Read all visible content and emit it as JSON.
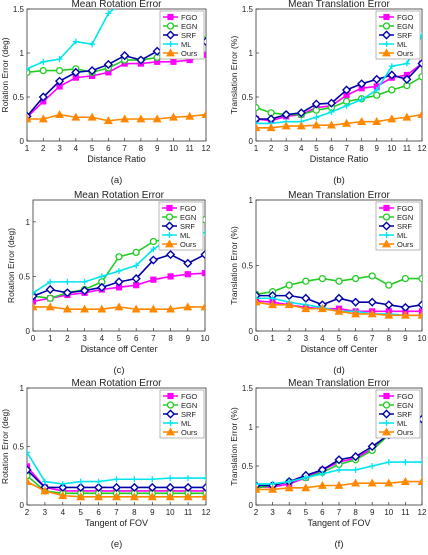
{
  "figure": {
    "colors": {
      "FGO": "#ff00ff",
      "EGN": "#22cc22",
      "SRF": "#0000aa",
      "ML": "#00e5ee",
      "Ours": "#ff8800"
    },
    "legend_labels": [
      "FGO",
      "EGN",
      "SRF",
      "ML",
      "Ours"
    ],
    "legend_placement": "top-right",
    "grid": false
  },
  "chart_data": [
    {
      "type": "line",
      "panel_label": "(a)",
      "title": "Mean Rotation Error",
      "xlabel": "Distance Ratio",
      "ylabel": "Rotation Error (deg)",
      "xlim": [
        1,
        12
      ],
      "ylim": [
        0,
        1.5
      ],
      "xticks": [
        "1",
        "2",
        "3",
        "4",
        "5",
        "6",
        "7",
        "8",
        "9",
        "10",
        "11",
        "12"
      ],
      "yticks": [
        "0",
        "0.5",
        "1",
        "1.5"
      ],
      "x": [
        1,
        2,
        3,
        4,
        5,
        6,
        7,
        8,
        9,
        10,
        11,
        12
      ],
      "series": [
        {
          "name": "FGO",
          "values": [
            0.27,
            0.45,
            0.62,
            0.72,
            0.74,
            0.78,
            0.88,
            0.88,
            0.9,
            0.9,
            0.92,
            0.98
          ]
        },
        {
          "name": "EGN",
          "values": [
            0.78,
            0.8,
            0.8,
            0.82,
            0.78,
            0.83,
            0.92,
            0.92,
            0.95,
            0.98,
            1.1,
            1.15
          ]
        },
        {
          "name": "SRF",
          "values": [
            0.28,
            0.5,
            0.68,
            0.78,
            0.8,
            0.87,
            0.97,
            0.92,
            1.02,
            1.05,
            1.05,
            1.13
          ]
        },
        {
          "name": "ML",
          "values": [
            0.82,
            0.9,
            0.93,
            1.13,
            1.1,
            1.45,
            1.6,
            null,
            null,
            null,
            null,
            null
          ]
        },
        {
          "name": "Ours",
          "values": [
            0.25,
            0.25,
            0.3,
            0.27,
            0.27,
            0.23,
            0.25,
            0.25,
            0.25,
            0.27,
            0.28,
            0.3
          ]
        }
      ]
    },
    {
      "type": "line",
      "panel_label": "(b)",
      "title": "Mean Translation Error",
      "xlabel": "Distance Ratio",
      "ylabel": "Translation Error (%)",
      "xlim": [
        1,
        12
      ],
      "ylim": [
        0,
        1.5
      ],
      "xticks": [
        "1",
        "2",
        "3",
        "4",
        "5",
        "6",
        "7",
        "8",
        "9",
        "10",
        "11",
        "12"
      ],
      "yticks": [
        "0",
        "0.5",
        "1",
        "1.5"
      ],
      "x": [
        1,
        2,
        3,
        4,
        5,
        6,
        7,
        8,
        9,
        10,
        11,
        12
      ],
      "series": [
        {
          "name": "FGO",
          "values": [
            0.25,
            0.23,
            0.28,
            0.3,
            0.38,
            0.4,
            0.52,
            0.6,
            0.62,
            0.72,
            0.75,
            0.88
          ]
        },
        {
          "name": "EGN",
          "values": [
            0.38,
            0.32,
            0.3,
            0.3,
            0.35,
            0.38,
            0.45,
            0.48,
            0.52,
            0.58,
            0.63,
            0.73
          ]
        },
        {
          "name": "SRF",
          "values": [
            0.25,
            0.25,
            0.3,
            0.32,
            0.42,
            0.43,
            0.58,
            0.65,
            0.7,
            0.75,
            0.7,
            0.88
          ]
        },
        {
          "name": "ML",
          "values": [
            0.2,
            0.2,
            0.22,
            0.22,
            0.27,
            0.33,
            0.4,
            0.47,
            0.58,
            0.85,
            0.88,
            1.2
          ]
        },
        {
          "name": "Ours",
          "values": [
            0.15,
            0.15,
            0.17,
            0.17,
            0.18,
            0.18,
            0.2,
            0.22,
            0.22,
            0.25,
            0.27,
            0.3
          ]
        }
      ]
    },
    {
      "type": "line",
      "panel_label": "(c)",
      "title": "Mean Rotation Error",
      "xlabel": "Distance off Center",
      "ylabel": "Rotation Error (deg)",
      "xlim": [
        0,
        10
      ],
      "ylim": [
        0,
        1.2
      ],
      "xticks": [
        "0",
        "1",
        "2",
        "3",
        "4",
        "5",
        "6",
        "7",
        "8",
        "9",
        "10"
      ],
      "yticks": [
        "0",
        "0.5",
        "1"
      ],
      "x": [
        0,
        1,
        2,
        3,
        4,
        5,
        6,
        7,
        8,
        9,
        10
      ],
      "series": [
        {
          "name": "FGO",
          "values": [
            0.27,
            0.3,
            0.33,
            0.35,
            0.38,
            0.4,
            0.42,
            0.47,
            0.5,
            0.52,
            0.53
          ]
        },
        {
          "name": "EGN",
          "values": [
            0.32,
            0.3,
            0.35,
            0.38,
            0.45,
            0.68,
            0.72,
            0.82,
            0.85,
            0.9,
            1.02
          ]
        },
        {
          "name": "SRF",
          "values": [
            0.32,
            0.38,
            0.35,
            0.37,
            0.4,
            0.45,
            0.48,
            0.65,
            0.7,
            0.62,
            0.7
          ]
        },
        {
          "name": "ML",
          "values": [
            0.35,
            0.45,
            0.45,
            0.45,
            0.5,
            0.55,
            0.6,
            0.75,
            0.85,
            0.92,
            0.9
          ]
        },
        {
          "name": "Ours",
          "values": [
            0.22,
            0.22,
            0.2,
            0.2,
            0.2,
            0.22,
            0.2,
            0.2,
            0.2,
            0.22,
            0.22
          ]
        }
      ]
    },
    {
      "type": "line",
      "panel_label": "(d)",
      "title": "Mean Translation Error",
      "xlabel": "Distance off Center",
      "ylabel": "Translation Error (%)",
      "xlim": [
        0,
        10
      ],
      "ylim": [
        0,
        1
      ],
      "xticks": [
        "0",
        "1",
        "2",
        "3",
        "4",
        "5",
        "6",
        "7",
        "8",
        "9",
        "10"
      ],
      "yticks": [
        "0",
        "0.5",
        "1"
      ],
      "x": [
        0,
        1,
        2,
        3,
        4,
        5,
        6,
        7,
        8,
        9,
        10
      ],
      "series": [
        {
          "name": "FGO",
          "values": [
            0.23,
            0.22,
            0.2,
            0.18,
            0.17,
            0.17,
            0.15,
            0.15,
            0.15,
            0.15,
            0.15
          ]
        },
        {
          "name": "EGN",
          "values": [
            0.28,
            0.3,
            0.35,
            0.38,
            0.4,
            0.38,
            0.4,
            0.42,
            0.35,
            0.4,
            0.4
          ]
        },
        {
          "name": "SRF",
          "values": [
            0.27,
            0.27,
            0.27,
            0.25,
            0.2,
            0.25,
            0.22,
            0.22,
            0.2,
            0.18,
            0.2
          ]
        },
        {
          "name": "ML",
          "values": [
            0.25,
            0.25,
            0.22,
            0.2,
            0.18,
            0.15,
            0.15,
            0.13,
            0.13,
            0.12,
            0.12
          ]
        },
        {
          "name": "Ours",
          "values": [
            0.22,
            0.2,
            0.2,
            0.17,
            0.17,
            0.15,
            0.13,
            0.13,
            0.12,
            0.12,
            0.12
          ]
        }
      ]
    },
    {
      "type": "line",
      "panel_label": "(e)",
      "title": "Mean Rotation Error",
      "xlabel": "Tangent of FOV",
      "ylabel": "Rotation Error (deg)",
      "xlim": [
        2,
        12
      ],
      "ylim": [
        0,
        1
      ],
      "xticks": [
        "2",
        "3",
        "4",
        "5",
        "6",
        "7",
        "8",
        "9",
        "10",
        "11",
        "12"
      ],
      "yticks": [
        "0",
        "0.5",
        "1"
      ],
      "x": [
        2,
        3,
        4,
        5,
        6,
        7,
        8,
        9,
        10,
        11,
        12
      ],
      "series": [
        {
          "name": "FGO",
          "values": [
            0.33,
            0.15,
            0.12,
            0.12,
            0.12,
            0.12,
            0.12,
            0.12,
            0.12,
            0.12,
            0.12
          ]
        },
        {
          "name": "EGN",
          "values": [
            0.25,
            0.12,
            0.1,
            0.1,
            0.1,
            0.1,
            0.1,
            0.1,
            0.1,
            0.1,
            0.1
          ]
        },
        {
          "name": "SRF",
          "values": [
            0.3,
            0.15,
            0.15,
            0.15,
            0.15,
            0.15,
            0.15,
            0.15,
            0.15,
            0.15,
            0.15
          ]
        },
        {
          "name": "ML",
          "values": [
            0.45,
            0.2,
            0.18,
            0.2,
            0.2,
            0.22,
            0.22,
            0.22,
            0.23,
            0.23,
            0.23
          ]
        },
        {
          "name": "Ours",
          "values": [
            0.2,
            0.12,
            0.08,
            0.07,
            0.07,
            0.07,
            0.07,
            0.07,
            0.07,
            0.07,
            0.07
          ]
        }
      ]
    },
    {
      "type": "line",
      "panel_label": "(f)",
      "title": "Mean Translation Error",
      "xlabel": "Tangent of FOV",
      "ylabel": "Translation Error (%)",
      "xlim": [
        2,
        12
      ],
      "ylim": [
        0,
        1.5
      ],
      "xticks": [
        "2",
        "3",
        "4",
        "5",
        "6",
        "7",
        "8",
        "9",
        "10",
        "11",
        "12"
      ],
      "yticks": [
        "0",
        "0.5",
        "1",
        "1.5"
      ],
      "x": [
        2,
        3,
        4,
        5,
        6,
        7,
        8,
        9,
        10,
        11,
        12
      ],
      "series": [
        {
          "name": "FGO",
          "values": [
            0.23,
            0.23,
            0.27,
            0.35,
            0.45,
            0.55,
            0.6,
            0.72,
            0.9,
            1.1,
            1.1
          ]
        },
        {
          "name": "EGN",
          "values": [
            0.22,
            0.25,
            0.3,
            0.35,
            0.42,
            0.52,
            0.58,
            0.7,
            0.9,
            1.05,
            1.1
          ]
        },
        {
          "name": "SRF",
          "values": [
            0.25,
            0.25,
            0.3,
            0.38,
            0.45,
            0.58,
            0.62,
            0.75,
            0.9,
            1.05,
            1.1
          ]
        },
        {
          "name": "ML",
          "values": [
            0.27,
            0.27,
            0.3,
            0.35,
            0.4,
            0.45,
            0.45,
            0.5,
            0.55,
            0.55,
            0.55
          ]
        },
        {
          "name": "Ours",
          "values": [
            0.2,
            0.2,
            0.22,
            0.22,
            0.25,
            0.25,
            0.28,
            0.28,
            0.28,
            0.3,
            0.3
          ]
        }
      ]
    }
  ]
}
